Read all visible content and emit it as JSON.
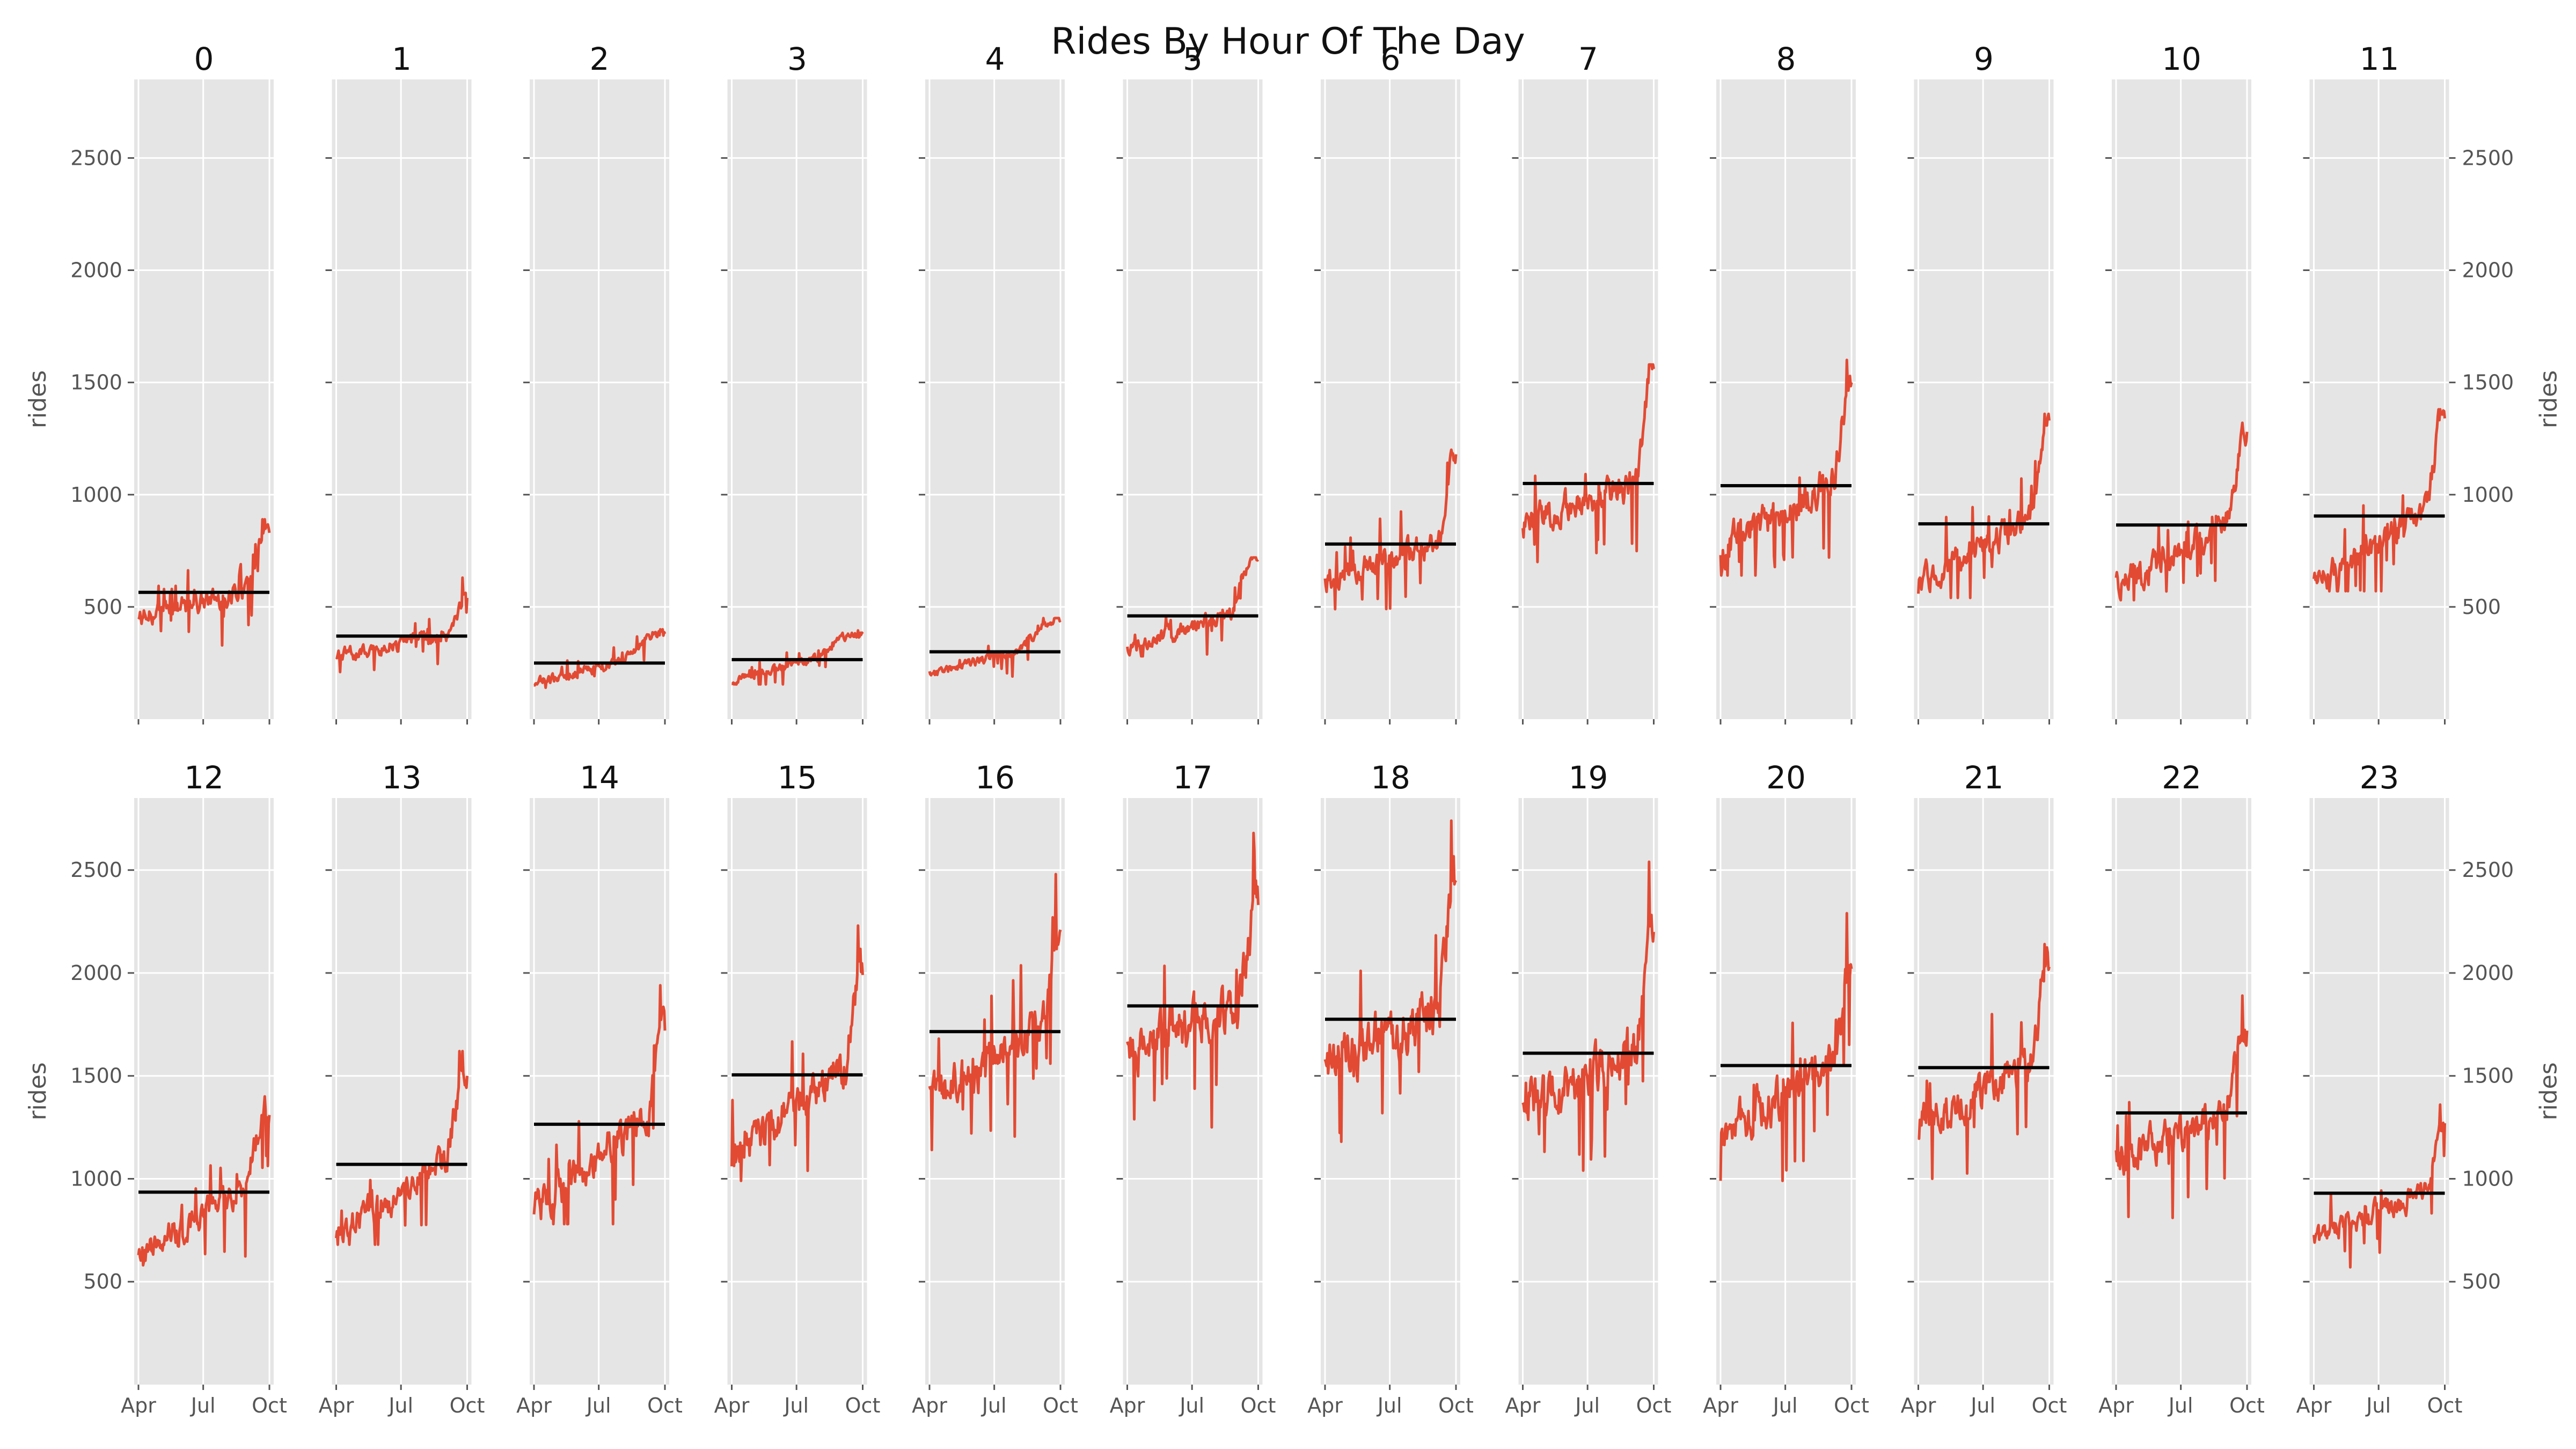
{
  "chart_data": {
    "type": "line",
    "title": "Rides By Hour Of The Day",
    "ylabel": "rides",
    "xlabel": "",
    "ylim": [
      0,
      2850
    ],
    "yticks": [
      500,
      1000,
      1500,
      2000,
      2500
    ],
    "xticks": [
      {
        "label": "Apr",
        "t": 0.0
      },
      {
        "label": "Jul",
        "t": 0.4945
      },
      {
        "label": "Oct",
        "t": 1.0
      }
    ],
    "grid": true,
    "panel_background": "#e5e5e5",
    "grid_color": "#ffffff",
    "line_color": "#e24a33",
    "mean_color": "#000000",
    "layout": {
      "rows": 2,
      "cols": 12
    },
    "panels": [
      {
        "name": "0",
        "mean": 565,
        "start": 450,
        "end": 830,
        "min": 320,
        "max": 890,
        "jump": 0.82
      },
      {
        "name": "1",
        "mean": 370,
        "start": 280,
        "end": 540,
        "min": 210,
        "max": 630,
        "jump": 0.88
      },
      {
        "name": "2",
        "mean": 250,
        "start": 160,
        "end": 380,
        "min": 140,
        "max": 400,
        "jump": 0.7
      },
      {
        "name": "3",
        "mean": 265,
        "start": 170,
        "end": 380,
        "min": 155,
        "max": 395,
        "jump": 0.66
      },
      {
        "name": "4",
        "mean": 300,
        "start": 200,
        "end": 440,
        "min": 180,
        "max": 450,
        "jump": 0.7
      },
      {
        "name": "5",
        "mean": 460,
        "start": 310,
        "end": 710,
        "min": 280,
        "max": 720,
        "jump": 0.8
      },
      {
        "name": "6",
        "mean": 780,
        "start": 620,
        "end": 1180,
        "min": 490,
        "max": 1200,
        "jump": 0.9
      },
      {
        "name": "7",
        "mean": 1050,
        "start": 860,
        "end": 1560,
        "min": 700,
        "max": 1580,
        "jump": 0.88
      },
      {
        "name": "8",
        "mean": 1040,
        "start": 760,
        "end": 1500,
        "min": 640,
        "max": 1600,
        "jump": 0.88
      },
      {
        "name": "9",
        "mean": 870,
        "start": 600,
        "end": 1330,
        "min": 540,
        "max": 1360,
        "jump": 0.87
      },
      {
        "name": "10",
        "mean": 865,
        "start": 590,
        "end": 1280,
        "min": 530,
        "max": 1320,
        "jump": 0.88
      },
      {
        "name": "11",
        "mean": 905,
        "start": 600,
        "end": 1340,
        "min": 570,
        "max": 1380,
        "jump": 0.87
      },
      {
        "name": "12",
        "mean": 935,
        "start": 620,
        "end": 1310,
        "min": 580,
        "max": 1400,
        "jump": 0.82
      },
      {
        "name": "13",
        "mean": 1070,
        "start": 720,
        "end": 1500,
        "min": 680,
        "max": 1620,
        "jump": 0.85
      },
      {
        "name": "14",
        "mean": 1265,
        "start": 860,
        "end": 1720,
        "min": 780,
        "max": 1940,
        "jump": 0.88
      },
      {
        "name": "15",
        "mean": 1505,
        "start": 1120,
        "end": 1990,
        "min": 990,
        "max": 2230,
        "jump": 0.88
      },
      {
        "name": "16",
        "mean": 1715,
        "start": 1380,
        "end": 2210,
        "min": 1140,
        "max": 2480,
        "jump": 0.88
      },
      {
        "name": "17",
        "mean": 1840,
        "start": 1620,
        "end": 2330,
        "min": 1250,
        "max": 2680,
        "jump": 0.88
      },
      {
        "name": "18",
        "mean": 1775,
        "start": 1560,
        "end": 2440,
        "min": 1180,
        "max": 2740,
        "jump": 0.88
      },
      {
        "name": "19",
        "mean": 1610,
        "start": 1380,
        "end": 2200,
        "min": 1040,
        "max": 2540,
        "jump": 0.88
      },
      {
        "name": "20",
        "mean": 1550,
        "start": 1200,
        "end": 2020,
        "min": 990,
        "max": 2290,
        "jump": 0.88
      },
      {
        "name": "21",
        "mean": 1540,
        "start": 1250,
        "end": 2030,
        "min": 1000,
        "max": 2140,
        "jump": 0.88
      },
      {
        "name": "22",
        "mean": 1320,
        "start": 1080,
        "end": 1720,
        "min": 810,
        "max": 1890,
        "jump": 0.85
      },
      {
        "name": "23",
        "mean": 930,
        "start": 700,
        "end": 1270,
        "min": 570,
        "max": 1360,
        "jump": 0.88
      }
    ]
  }
}
